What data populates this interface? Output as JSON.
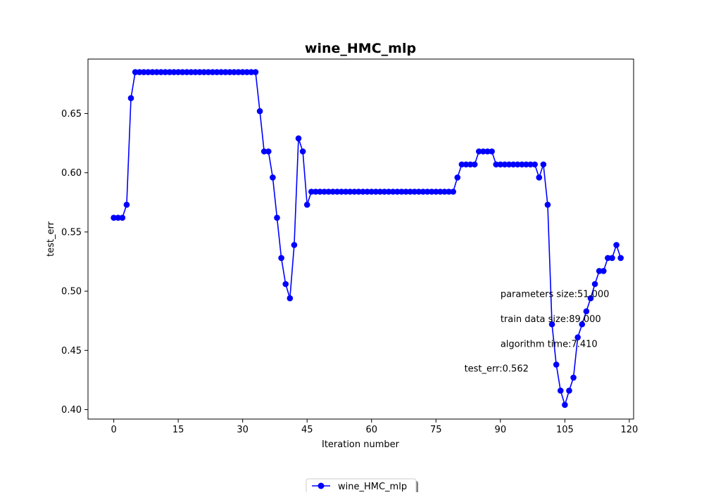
{
  "chart_data": {
    "type": "line",
    "title": "wine_HMC_mlp",
    "xlabel": "Iteration number",
    "ylabel": "test_err",
    "xlim": [
      -6,
      121
    ],
    "ylim": [
      0.392,
      0.696
    ],
    "xticks": [
      0,
      15,
      30,
      45,
      60,
      75,
      90,
      105,
      120
    ],
    "xtick_labels": [
      "0",
      "15",
      "30",
      "45",
      "60",
      "75",
      "90",
      "105",
      "120"
    ],
    "yticks": [
      0.4,
      0.45,
      0.5,
      0.55,
      0.6,
      0.65
    ],
    "ytick_labels": [
      "0.40",
      "0.45",
      "0.50",
      "0.55",
      "0.60",
      "0.65"
    ],
    "grid": false,
    "legend_placement": "bottom-center",
    "series": [
      {
        "name": "wine_HMC_mlp",
        "color": "#0000ff",
        "x": [
          0,
          1,
          2,
          3,
          4,
          5,
          6,
          7,
          8,
          9,
          10,
          11,
          12,
          13,
          14,
          15,
          16,
          17,
          18,
          19,
          20,
          21,
          22,
          23,
          24,
          25,
          26,
          27,
          28,
          29,
          30,
          31,
          32,
          33,
          34,
          35,
          36,
          37,
          38,
          39,
          40,
          41,
          42,
          43,
          44,
          45,
          46,
          47,
          48,
          49,
          50,
          51,
          52,
          53,
          54,
          55,
          56,
          57,
          58,
          59,
          60,
          61,
          62,
          63,
          64,
          65,
          66,
          67,
          68,
          69,
          70,
          71,
          72,
          73,
          74,
          75,
          76,
          77,
          78,
          79,
          80,
          81,
          82,
          83,
          84,
          85,
          86,
          87,
          88,
          89,
          90,
          91,
          92,
          93,
          94,
          95,
          96,
          97,
          98,
          99,
          100,
          101,
          102,
          103,
          104,
          105,
          106,
          107,
          108,
          109,
          110,
          111,
          112,
          113,
          114,
          115,
          116,
          117,
          118
        ],
        "y": [
          0.562,
          0.562,
          0.562,
          0.573,
          0.663,
          0.685,
          0.685,
          0.685,
          0.685,
          0.685,
          0.685,
          0.685,
          0.685,
          0.685,
          0.685,
          0.685,
          0.685,
          0.685,
          0.685,
          0.685,
          0.685,
          0.685,
          0.685,
          0.685,
          0.685,
          0.685,
          0.685,
          0.685,
          0.685,
          0.685,
          0.685,
          0.685,
          0.685,
          0.685,
          0.652,
          0.618,
          0.618,
          0.596,
          0.562,
          0.528,
          0.506,
          0.494,
          0.539,
          0.629,
          0.618,
          0.573,
          0.584,
          0.584,
          0.584,
          0.584,
          0.584,
          0.584,
          0.584,
          0.584,
          0.584,
          0.584,
          0.584,
          0.584,
          0.584,
          0.584,
          0.584,
          0.584,
          0.584,
          0.584,
          0.584,
          0.584,
          0.584,
          0.584,
          0.584,
          0.584,
          0.584,
          0.584,
          0.584,
          0.584,
          0.584,
          0.584,
          0.584,
          0.584,
          0.584,
          0.584,
          0.596,
          0.607,
          0.607,
          0.607,
          0.607,
          0.618,
          0.618,
          0.618,
          0.618,
          0.607,
          0.607,
          0.607,
          0.607,
          0.607,
          0.607,
          0.607,
          0.607,
          0.607,
          0.607,
          0.596,
          0.607,
          0.573,
          0.472,
          0.438,
          0.416,
          0.404,
          0.416,
          0.427,
          0.461,
          0.472,
          0.483,
          0.494,
          0.506,
          0.517,
          0.517,
          0.528,
          0.528,
          0.539,
          0.528
        ]
      }
    ],
    "annotations": [
      {
        "text": "parameters size:51.000",
        "x": 90,
        "y": 0.495
      },
      {
        "text": "train data size:89.000",
        "x": 90,
        "y": 0.474
      },
      {
        "text": "algorithm time:7.410",
        "x": 90,
        "y": 0.453
      },
      {
        "text": "test_err:0.562",
        "x": 81.6,
        "y": 0.432
      }
    ]
  }
}
